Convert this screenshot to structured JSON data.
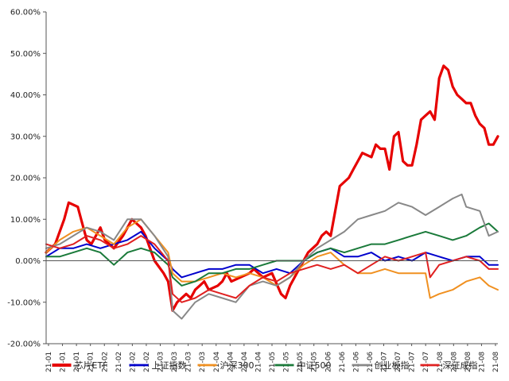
{
  "chart_data": {
    "type": "line",
    "title": "",
    "xlabel": "",
    "ylabel": "",
    "ylim": [
      -20,
      60
    ],
    "y_ticks": [
      "60.00%",
      "50.00%",
      "40.00%",
      "30.00%",
      "20.00%",
      "10.00%",
      "0.00%",
      "-10.00%",
      "-20.00%"
    ],
    "y_tick_values": [
      60,
      50,
      40,
      30,
      20,
      10,
      0,
      -10,
      -20
    ],
    "x_tick_labels": [
      "21-01",
      "21-01",
      "21-01",
      "21-01",
      "21-02",
      "21-02",
      "21-02",
      "21-02",
      "21-03",
      "21-03",
      "21-03",
      "21-03",
      "21-04",
      "21-04",
      "21-04",
      "21-04",
      "21-05",
      "21-05",
      "21-05",
      "21-05",
      "21-06",
      "21-06",
      "21-06",
      "21-06",
      "21-07",
      "21-07",
      "21-07",
      "21-07",
      "21-08",
      "21-08",
      "21-08",
      "21-08",
      "21-08"
    ],
    "legend_position": "bottom",
    "grid": false,
    "x_index_range": [
      0,
      100
    ],
    "series": [
      {
        "name": "芯片ETF",
        "color": "#e60000",
        "width": 3.2,
        "x": [
          0,
          2,
          4,
          5,
          7,
          8,
          9,
          10,
          11,
          12,
          13,
          15,
          17,
          19,
          20,
          21,
          22,
          23,
          24,
          26,
          27,
          28,
          29,
          31,
          32,
          33,
          34,
          35,
          36,
          38,
          39,
          40,
          41,
          43,
          45,
          46,
          48,
          50,
          52,
          53,
          54,
          56,
          58,
          60,
          61,
          62,
          63,
          65,
          67,
          68,
          69,
          70,
          72,
          73,
          74,
          75,
          76,
          77,
          78,
          79,
          80,
          81,
          82,
          83,
          84,
          85,
          86,
          87,
          88,
          89,
          90,
          91,
          92,
          93,
          94,
          95,
          96,
          97,
          98,
          99,
          100
        ],
        "values": [
          2,
          4,
          10,
          14,
          13,
          9,
          5,
          4,
          6,
          8,
          5,
          3,
          6,
          10,
          9,
          8,
          6,
          3,
          0,
          -3,
          -5,
          -12,
          -10,
          -8,
          -9,
          -7,
          -6,
          -5,
          -7,
          -6,
          -5,
          -3,
          -5,
          -4,
          -3,
          -2,
          -4,
          -3,
          -8,
          -9,
          -6,
          -2,
          2,
          4,
          6,
          7,
          6,
          18,
          20,
          22,
          24,
          26,
          25,
          28,
          27,
          27,
          22,
          30,
          31,
          24,
          23,
          23,
          28,
          34,
          35,
          36,
          34,
          44,
          47,
          46,
          42,
          40,
          39,
          38,
          38,
          35,
          33,
          32,
          28,
          28,
          30
        ]
      },
      {
        "name": "上证指数",
        "color": "#0000cc",
        "width": 2,
        "x": [
          0,
          3,
          6,
          9,
          12,
          15,
          18,
          21,
          24,
          27,
          28,
          30,
          33,
          36,
          39,
          42,
          45,
          48,
          51,
          54,
          57,
          60,
          63,
          66,
          69,
          72,
          75,
          78,
          81,
          84,
          87,
          90,
          93,
          96,
          98,
          100
        ],
        "values": [
          1,
          3,
          3,
          4,
          3,
          4,
          5,
          7,
          3,
          0,
          -2,
          -4,
          -3,
          -2,
          -2,
          -1,
          -1,
          -3,
          -2,
          -3,
          0,
          2,
          3,
          1,
          1,
          2,
          0,
          1,
          0,
          2,
          1,
          0,
          1,
          1,
          -1,
          -1
        ]
      },
      {
        "name": "沪深300",
        "color": "#f09020",
        "width": 2,
        "x": [
          0,
          3,
          6,
          9,
          12,
          15,
          18,
          21,
          24,
          27,
          28,
          30,
          33,
          36,
          39,
          42,
          45,
          48,
          51,
          54,
          57,
          60,
          63,
          66,
          69,
          72,
          75,
          78,
          81,
          84,
          85,
          87,
          90,
          93,
          96,
          98,
          100
        ],
        "values": [
          2,
          5,
          7,
          8,
          6,
          4,
          8,
          10,
          6,
          2,
          -3,
          -5,
          -5,
          -4,
          -3,
          -4,
          -3,
          -4,
          -6,
          -4,
          -1,
          1,
          2,
          -1,
          -3,
          -3,
          -2,
          -3,
          -3,
          -3,
          -9,
          -8,
          -7,
          -5,
          -4,
          -6,
          -7
        ]
      },
      {
        "name": "中证500",
        "color": "#1a7a3a",
        "width": 2,
        "x": [
          0,
          3,
          6,
          9,
          12,
          15,
          18,
          21,
          24,
          27,
          28,
          30,
          33,
          36,
          39,
          42,
          45,
          48,
          51,
          54,
          57,
          60,
          63,
          66,
          69,
          72,
          75,
          78,
          81,
          84,
          87,
          90,
          93,
          96,
          98,
          100
        ],
        "values": [
          1,
          1,
          2,
          3,
          2,
          -1,
          2,
          3,
          2,
          -1,
          -4,
          -6,
          -5,
          -3,
          -3,
          -2,
          -2,
          -1,
          0,
          0,
          0,
          2,
          3,
          2,
          3,
          4,
          4,
          5,
          6,
          7,
          6,
          5,
          6,
          8,
          9,
          7
        ]
      },
      {
        "name": "创业板指",
        "color": "#888888",
        "width": 2,
        "x": [
          0,
          3,
          6,
          9,
          12,
          15,
          18,
          21,
          24,
          27,
          28,
          30,
          33,
          36,
          39,
          42,
          45,
          48,
          51,
          54,
          57,
          60,
          63,
          66,
          69,
          72,
          75,
          78,
          81,
          84,
          87,
          90,
          92,
          93,
          96,
          98,
          100
        ],
        "values": [
          3,
          4,
          6,
          8,
          7,
          5,
          10,
          10,
          6,
          1,
          -12,
          -14,
          -10,
          -8,
          -9,
          -10,
          -6,
          -5,
          -6,
          -4,
          0,
          3,
          5,
          7,
          10,
          11,
          12,
          14,
          13,
          11,
          13,
          15,
          16,
          13,
          12,
          6,
          7
        ]
      },
      {
        "name": "深证成指",
        "color": "#e02020",
        "width": 2,
        "x": [
          0,
          3,
          6,
          9,
          12,
          15,
          18,
          21,
          24,
          27,
          28,
          30,
          33,
          36,
          39,
          42,
          45,
          48,
          51,
          54,
          57,
          60,
          63,
          66,
          69,
          72,
          75,
          78,
          81,
          84,
          85,
          87,
          90,
          93,
          96,
          98,
          100
        ],
        "values": [
          4,
          3,
          4,
          6,
          5,
          3,
          4,
          6,
          4,
          0,
          -8,
          -10,
          -9,
          -7,
          -8,
          -9,
          -6,
          -4,
          -5,
          -3,
          -2,
          -1,
          -2,
          -1,
          -3,
          -1,
          1,
          0,
          1,
          2,
          -4,
          -1,
          0,
          1,
          0,
          -2,
          -2
        ]
      }
    ]
  }
}
